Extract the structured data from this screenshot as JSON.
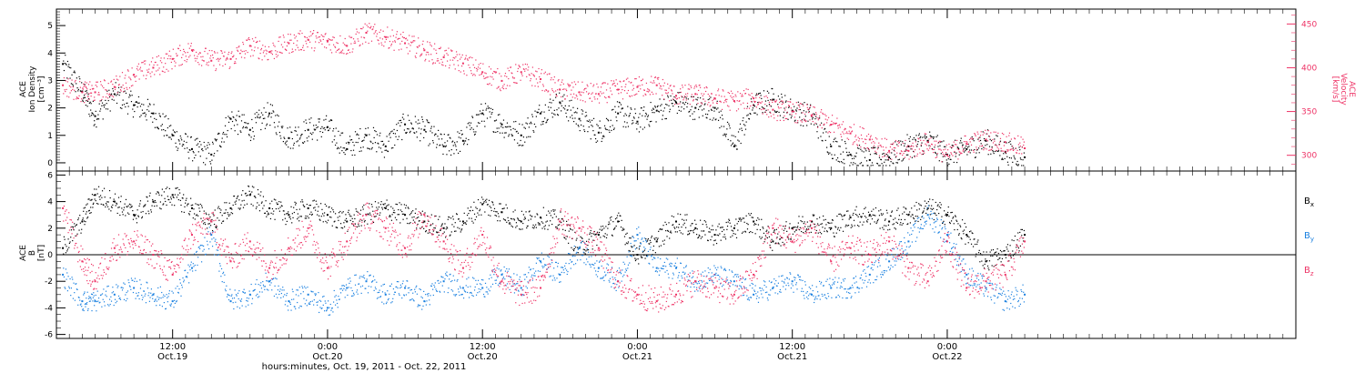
{
  "colors": {
    "background": "#ffffff",
    "axis": "#000000",
    "density": "#000000",
    "velocity": "#ee3366",
    "bx": "#000000",
    "by": "#1a80e0",
    "bz": "#ee3366"
  },
  "xaxis": {
    "label": "hours:minutes, Oct. 19, 2011 - Oct. 22, 2011",
    "range_hours": [
      3,
      99
    ],
    "ticks": [
      {
        "hour": 12,
        "time": "12:00",
        "date": "Oct.19"
      },
      {
        "hour": 24,
        "time": "0:00",
        "date": "Oct.20"
      },
      {
        "hour": 36,
        "time": "12:00",
        "date": "Oct.20"
      },
      {
        "hour": 48,
        "time": "0:00",
        "date": "Oct.21"
      },
      {
        "hour": 60,
        "time": "12:00",
        "date": "Oct.21"
      },
      {
        "hour": 72,
        "time": "0:00",
        "date": "Oct.22"
      }
    ],
    "minor_tick_step_hours": 1
  },
  "panels": {
    "top": {
      "left_label": [
        "ACE",
        "Ion Density",
        "[cm⁻³]"
      ],
      "right_label": [
        "ACE",
        "Velocity",
        "[km/s]"
      ],
      "left_ticks": [
        "0",
        "1",
        "2",
        "3",
        "4",
        "5"
      ],
      "right_ticks": [
        "300",
        "350",
        "400",
        "450"
      ]
    },
    "bottom": {
      "left_label": [
        "ACE",
        "B",
        "[nT]"
      ],
      "left_ticks": [
        "-6",
        "-4",
        "-2",
        "0",
        "2",
        "4",
        "6"
      ],
      "legend": [
        {
          "base": "B",
          "sub": "x",
          "color_key": "bx"
        },
        {
          "base": "B",
          "sub": "y",
          "color_key": "by"
        },
        {
          "base": "B",
          "sub": "z",
          "color_key": "bz"
        }
      ]
    }
  },
  "chart_data": [
    {
      "type": "scatter",
      "title": "",
      "xlabel": "hours:minutes, Oct. 19, 2011 - Oct. 22, 2011",
      "x_unit": "hours since 2011-10-19 00:00",
      "grid": false,
      "yaxes": [
        {
          "side": "left",
          "label": "ACE Ion Density [cm⁻³]",
          "range": [
            -0.3,
            5.6
          ],
          "ticks": [
            0,
            1,
            2,
            3,
            4,
            5
          ]
        },
        {
          "side": "right",
          "label": "ACE Velocity [km/s]",
          "range": [
            282,
            467
          ],
          "ticks": [
            300,
            350,
            400,
            450
          ]
        }
      ],
      "series": [
        {
          "name": "Ion Density",
          "axis": "left",
          "color_key": "density",
          "x": [
            3.5,
            5,
            6,
            7.5,
            9,
            10.5,
            12,
            13.5,
            15,
            16.5,
            18,
            19.5,
            21,
            22.5,
            24,
            25.5,
            27,
            28.5,
            30,
            31.5,
            33,
            34.5,
            36,
            37.5,
            39,
            40.5,
            42,
            43.5,
            45,
            46.5,
            48,
            49.5,
            51,
            52.5,
            54,
            55.5,
            57,
            58.5,
            60,
            61.5,
            63,
            64.5,
            66,
            67.5,
            69,
            70.5,
            72,
            73.5,
            75,
            76.5,
            78
          ],
          "y": [
            3.6,
            2.6,
            1.7,
            2.5,
            2.1,
            1.8,
            1.0,
            0.5,
            0.3,
            1.6,
            1.2,
            1.8,
            0.9,
            1.2,
            1.3,
            0.5,
            1.0,
            0.6,
            1.4,
            1.2,
            0.6,
            0.8,
            1.8,
            1.4,
            1.0,
            1.8,
            2.2,
            1.6,
            1.1,
            1.8,
            1.5,
            1.9,
            2.2,
            2.0,
            2.0,
            0.6,
            2.1,
            2.3,
            1.9,
            1.7,
            0.6,
            0.3,
            0.1,
            0.2,
            0.6,
            0.8,
            0.3,
            0.5,
            0.8,
            0.4,
            0.2
          ]
        },
        {
          "name": "Velocity",
          "axis": "right",
          "color_key": "velocity",
          "x": [
            3.5,
            5,
            6,
            7.5,
            9,
            10.5,
            12,
            13.5,
            15,
            16.5,
            18,
            19.5,
            21,
            22.5,
            24,
            25.5,
            27,
            28.5,
            30,
            31.5,
            33,
            34.5,
            36,
            37.5,
            39,
            40.5,
            42,
            43.5,
            45,
            46.5,
            48,
            49.5,
            51,
            52.5,
            54,
            55.5,
            57,
            58.5,
            60,
            61.5,
            63,
            64.5,
            66,
            67.5,
            69,
            70.5,
            72,
            73.5,
            75,
            76.5,
            78
          ],
          "y": [
            380,
            372,
            372,
            378,
            392,
            400,
            410,
            420,
            408,
            410,
            425,
            418,
            428,
            432,
            430,
            425,
            440,
            435,
            428,
            420,
            412,
            405,
            395,
            385,
            395,
            387,
            375,
            372,
            370,
            375,
            378,
            380,
            368,
            370,
            365,
            362,
            365,
            352,
            350,
            345,
            335,
            325,
            318,
            305,
            305,
            315,
            300,
            313,
            318,
            315,
            308
          ]
        }
      ]
    },
    {
      "type": "scatter",
      "title": "",
      "xlabel": "hours:minutes, Oct. 19, 2011 - Oct. 22, 2011",
      "x_unit": "hours since 2011-10-19 00:00",
      "ylabel": "ACE B [nT]",
      "ylim": [
        -6.3,
        6.3
      ],
      "grid": false,
      "series": [
        {
          "name": "Bx",
          "color_key": "bx",
          "x": [
            3.5,
            5,
            6,
            7.5,
            9,
            10.5,
            12,
            13.5,
            15,
            16.5,
            18,
            19.5,
            21,
            22.5,
            24,
            25.5,
            27,
            28.5,
            30,
            31.5,
            33,
            34.5,
            36,
            37.5,
            39,
            40.5,
            42,
            43.5,
            45,
            46.5,
            48,
            49.5,
            51,
            52.5,
            54,
            55.5,
            57,
            58.5,
            60,
            61.5,
            63,
            64.5,
            66,
            67.5,
            69,
            70.5,
            72,
            73.5,
            75,
            76.5,
            78
          ],
          "y": [
            0.5,
            2.5,
            4.5,
            4.0,
            3.0,
            4.0,
            4.5,
            3.5,
            2.5,
            3.5,
            4.5,
            3.5,
            3.0,
            3.5,
            3.0,
            2.5,
            3.0,
            3.5,
            3.0,
            2.5,
            2.0,
            2.5,
            3.8,
            3.2,
            2.5,
            2.8,
            2.5,
            0.5,
            1.5,
            2.5,
            0.0,
            1.0,
            2.5,
            2.0,
            1.5,
            2.0,
            2.5,
            1.0,
            2.0,
            2.5,
            2.0,
            2.8,
            3.0,
            2.5,
            3.0,
            3.5,
            3.0,
            1.5,
            -0.5,
            0.0,
            1.5
          ]
        },
        {
          "name": "By",
          "color_key": "by",
          "x": [
            3.5,
            5,
            6,
            7.5,
            9,
            10.5,
            12,
            13.5,
            15,
            16.5,
            18,
            19.5,
            21,
            22.5,
            24,
            25.5,
            27,
            28.5,
            30,
            31.5,
            33,
            34.5,
            36,
            37.5,
            39,
            40.5,
            42,
            43.5,
            45,
            46.5,
            48,
            49.5,
            51,
            52.5,
            54,
            55.5,
            57,
            58.5,
            60,
            61.5,
            63,
            64.5,
            66,
            67.5,
            69,
            70.5,
            72,
            73.5,
            75,
            76.5,
            78
          ],
          "y": [
            -1.5,
            -3.5,
            -3.5,
            -3.0,
            -2.5,
            -3.0,
            -3.5,
            -1.0,
            1.5,
            -3.5,
            -3.0,
            -2.0,
            -3.5,
            -3.0,
            -4.0,
            -2.5,
            -2.0,
            -3.0,
            -2.5,
            -3.5,
            -2.0,
            -2.5,
            -2.5,
            -1.5,
            -2.5,
            -0.5,
            -1.5,
            0.5,
            -1.0,
            -2.0,
            1.5,
            -1.0,
            -1.0,
            -2.0,
            -1.5,
            -2.0,
            -3.0,
            -2.5,
            -2.0,
            -3.0,
            -2.5,
            -2.5,
            -1.5,
            -0.5,
            1.0,
            3.0,
            1.5,
            -1.5,
            -2.5,
            -3.5,
            -3.0
          ]
        },
        {
          "name": "Bz",
          "color_key": "bz",
          "x": [
            3.5,
            5,
            6,
            7.5,
            9,
            10.5,
            12,
            13.5,
            15,
            16.5,
            18,
            19.5,
            21,
            22.5,
            24,
            25.5,
            27,
            28.5,
            30,
            31.5,
            33,
            34.5,
            36,
            37.5,
            39,
            40.5,
            42,
            43.5,
            45,
            46.5,
            48,
            49.5,
            51,
            52.5,
            54,
            55.5,
            57,
            58.5,
            60,
            61.5,
            63,
            64.5,
            66,
            67.5,
            69,
            70.5,
            72,
            73.5,
            75,
            76.5,
            78
          ],
          "y": [
            3.5,
            -0.5,
            -2.0,
            0.5,
            1.0,
            0.0,
            -1.5,
            1.5,
            2.5,
            -0.5,
            1.0,
            -1.0,
            0.5,
            2.0,
            -1.0,
            1.0,
            3.0,
            2.0,
            0.5,
            3.0,
            1.0,
            -1.0,
            1.5,
            -2.0,
            -3.0,
            -2.5,
            2.5,
            2.0,
            0.5,
            -2.0,
            -3.0,
            -3.5,
            -3.0,
            -2.0,
            -2.5,
            -3.0,
            -1.5,
            2.0,
            1.0,
            2.0,
            -0.5,
            0.5,
            0.0,
            1.0,
            -1.0,
            -2.0,
            1.0,
            -2.5,
            -2.0,
            -1.5,
            1.0
          ]
        }
      ]
    }
  ]
}
